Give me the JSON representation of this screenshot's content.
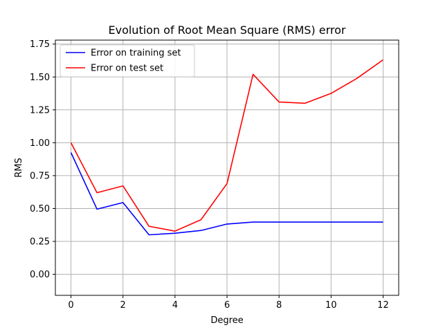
{
  "chart_data": {
    "type": "line",
    "title": "Evolution of Root Mean Square (RMS) error",
    "xlabel": "Degree",
    "ylabel": "RMS",
    "xlim": [
      -0.6,
      12.6
    ],
    "ylim": [
      -0.16,
      1.78
    ],
    "xticks": [
      0,
      2,
      4,
      6,
      8,
      10,
      12
    ],
    "yticks": [
      0.0,
      0.25,
      0.5,
      0.75,
      1.0,
      1.25,
      1.5,
      1.75
    ],
    "ytick_labels": [
      "0.00",
      "0.25",
      "0.50",
      "0.75",
      "1.00",
      "1.25",
      "1.50",
      "1.75"
    ],
    "grid": true,
    "legend_position": "top-left",
    "x": [
      0,
      1,
      2,
      3,
      4,
      5,
      6,
      7,
      8,
      9,
      10,
      11,
      12
    ],
    "series": [
      {
        "name": "Error on training set",
        "color": "#0000ff",
        "values": [
          0.925,
          0.495,
          0.545,
          0.3,
          0.312,
          0.333,
          0.382,
          0.397,
          0.397,
          0.397,
          0.397,
          0.397,
          0.397
        ]
      },
      {
        "name": "Error on test set",
        "color": "#ff0000",
        "values": [
          1.0,
          0.62,
          0.672,
          0.365,
          0.328,
          0.415,
          0.69,
          1.52,
          1.31,
          1.3,
          1.375,
          1.49,
          1.63
        ]
      }
    ]
  }
}
